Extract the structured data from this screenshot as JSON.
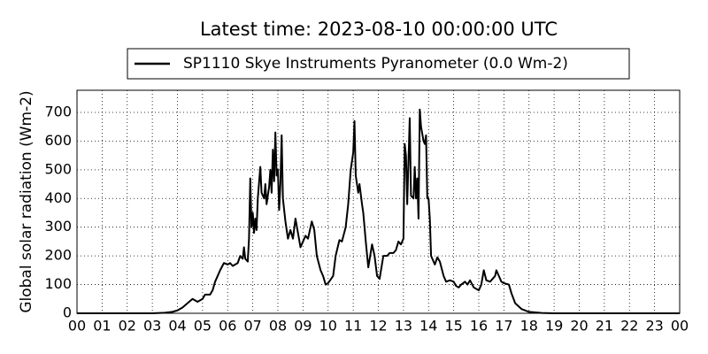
{
  "chart_data": {
    "type": "line",
    "title": "Latest time: 2023-08-10 00:00:00 UTC",
    "y_label": "Global solar radiation (Wm-2)",
    "x": [
      0,
      3,
      3.5,
      3.8,
      4,
      4.2,
      4.4,
      4.6,
      4.8,
      5,
      5.1,
      5.3,
      5.4,
      5.5,
      5.7,
      5.85,
      6,
      6.1,
      6.2,
      6.4,
      6.5,
      6.6,
      6.65,
      6.7,
      6.8,
      6.85,
      6.9,
      6.95,
      7,
      7.05,
      7.1,
      7.15,
      7.2,
      7.3,
      7.35,
      7.45,
      7.5,
      7.55,
      7.65,
      7.7,
      7.75,
      7.8,
      7.85,
      7.9,
      7.95,
      8,
      8.05,
      8.1,
      8.15,
      8.2,
      8.3,
      8.4,
      8.5,
      8.6,
      8.7,
      8.8,
      8.9,
      9,
      9.1,
      9.2,
      9.35,
      9.45,
      9.55,
      9.7,
      9.8,
      9.9,
      10,
      10.2,
      10.3,
      10.45,
      10.55,
      10.7,
      10.8,
      10.9,
      11,
      11.05,
      11.1,
      11.2,
      11.25,
      11.35,
      11.4,
      11.5,
      11.6,
      11.75,
      11.85,
      11.95,
      12.05,
      12.2,
      12.35,
      12.45,
      12.6,
      12.7,
      12.8,
      12.9,
      13,
      13.05,
      13.1,
      13.15,
      13.25,
      13.3,
      13.4,
      13.45,
      13.5,
      13.55,
      13.6,
      13.65,
      13.7,
      13.8,
      13.85,
      13.9,
      13.95,
      14,
      14.05,
      14.1,
      14.25,
      14.35,
      14.45,
      14.6,
      14.7,
      14.85,
      15,
      15.1,
      15.2,
      15.3,
      15.45,
      15.55,
      15.65,
      15.8,
      16,
      16.1,
      16.2,
      16.3,
      16.45,
      16.65,
      16.7,
      16.8,
      16.9,
      17,
      17.2,
      17.3,
      17.45,
      17.7,
      18,
      18.5,
      19,
      24
    ],
    "series": [
      {
        "name": "SP1110 Skye Instruments Pyranometer (0.0 Wm-2)",
        "color": "#000000",
        "values": [
          0,
          0,
          2,
          5,
          10,
          20,
          35,
          50,
          40,
          50,
          65,
          65,
          80,
          110,
          150,
          175,
          170,
          175,
          165,
          175,
          200,
          190,
          230,
          190,
          180,
          260,
          470,
          300,
          350,
          280,
          330,
          290,
          400,
          510,
          420,
          400,
          450,
          380,
          440,
          500,
          420,
          570,
          460,
          630,
          480,
          500,
          360,
          450,
          620,
          400,
          320,
          260,
          290,
          260,
          330,
          280,
          230,
          250,
          270,
          260,
          320,
          290,
          200,
          150,
          130,
          100,
          105,
          130,
          200,
          255,
          250,
          300,
          380,
          500,
          560,
          670,
          480,
          420,
          450,
          380,
          350,
          250,
          160,
          240,
          200,
          130,
          120,
          200,
          200,
          210,
          210,
          220,
          250,
          240,
          260,
          590,
          550,
          380,
          680,
          410,
          400,
          510,
          400,
          470,
          330,
          710,
          650,
          600,
          590,
          620,
          400,
          400,
          330,
          200,
          170,
          195,
          180,
          130,
          110,
          115,
          110,
          95,
          90,
          100,
          110,
          100,
          115,
          90,
          80,
          100,
          150,
          115,
          110,
          130,
          150,
          130,
          110,
          105,
          100,
          70,
          35,
          15,
          5,
          1,
          0,
          0
        ]
      }
    ],
    "xlim": [
      0,
      24
    ],
    "xticks": [
      {
        "value": 0,
        "label": "00"
      },
      {
        "value": 1,
        "label": "01"
      },
      {
        "value": 2,
        "label": "02"
      },
      {
        "value": 3,
        "label": "03"
      },
      {
        "value": 4,
        "label": "04"
      },
      {
        "value": 5,
        "label": "05"
      },
      {
        "value": 6,
        "label": "06"
      },
      {
        "value": 7,
        "label": "07"
      },
      {
        "value": 8,
        "label": "08"
      },
      {
        "value": 9,
        "label": "09"
      },
      {
        "value": 10,
        "label": "10"
      },
      {
        "value": 11,
        "label": "11"
      },
      {
        "value": 12,
        "label": "12"
      },
      {
        "value": 13,
        "label": "13"
      },
      {
        "value": 14,
        "label": "14"
      },
      {
        "value": 15,
        "label": "15"
      },
      {
        "value": 16,
        "label": "16"
      },
      {
        "value": 17,
        "label": "17"
      },
      {
        "value": 18,
        "label": "18"
      },
      {
        "value": 19,
        "label": "19"
      },
      {
        "value": 20,
        "label": "20"
      },
      {
        "value": 21,
        "label": "21"
      },
      {
        "value": 22,
        "label": "22"
      },
      {
        "value": 23,
        "label": "23"
      },
      {
        "value": 24,
        "label": "00"
      }
    ],
    "ylim": [
      0,
      777
    ],
    "yticks": [
      0,
      100,
      200,
      300,
      400,
      500,
      600,
      700
    ],
    "grid": true
  }
}
